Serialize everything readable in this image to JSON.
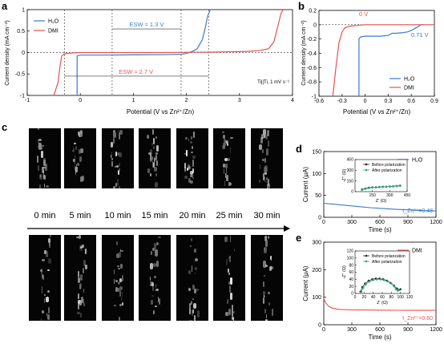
{
  "panel_letters": [
    "a",
    "b",
    "c",
    "d",
    "e"
  ],
  "panel_c": {
    "times": [
      "0 min",
      "5 min",
      "10 min",
      "15 min",
      "20 min",
      "25 min",
      "30 min"
    ]
  },
  "chart_data": [
    {
      "id": "a",
      "type": "line",
      "xlabel": "Potential (V vs Zn²⁺/Zn)",
      "ylabel": "Current density (mA cm⁻²)",
      "xlim": [
        -1,
        4
      ],
      "ylim": [
        -1,
        1
      ],
      "xticks": [
        -1,
        0,
        1,
        2,
        3,
        4
      ],
      "yticks": [
        -1,
        -0.5,
        0,
        0.5,
        1
      ],
      "legend": [
        "H₂O",
        "DMI"
      ],
      "legend_position": "top-left",
      "annotations": {
        "esw_h2o": "ESW ≈ 1.3 V",
        "esw_dmi": "ESW ≈ 2.7 V",
        "condition": "Ti||Ti, 1 mV s⁻¹"
      },
      "series": [
        {
          "name": "H₂O",
          "color": "#3a7cc8",
          "x": [
            -0.06,
            -0.06,
            0.0,
            0.5,
            1.0,
            1.5,
            1.9,
            2.0,
            2.1,
            2.2,
            2.3,
            2.36,
            2.4,
            2.45
          ],
          "y": [
            -1.0,
            -0.08,
            -0.06,
            -0.06,
            -0.055,
            -0.05,
            -0.04,
            -0.02,
            0.02,
            0.08,
            0.3,
            0.6,
            0.85,
            1.0
          ]
        },
        {
          "name": "DMI",
          "color": "#e4534f",
          "x": [
            -0.5,
            -0.42,
            -0.38,
            -0.35,
            -0.3,
            -0.25,
            -0.15,
            0.0,
            0.5,
            1.0,
            1.5,
            2.0,
            2.5,
            3.0,
            3.2,
            3.4,
            3.55,
            3.65,
            3.72,
            3.78,
            3.82
          ],
          "y": [
            -1.0,
            -0.7,
            -0.3,
            -0.08,
            -0.03,
            -0.02,
            -0.01,
            0.0,
            0.0,
            0.0,
            0.0,
            0.005,
            0.01,
            0.02,
            0.03,
            0.05,
            0.09,
            0.25,
            0.6,
            0.9,
            1.0
          ]
        }
      ]
    },
    {
      "id": "b",
      "type": "line",
      "xlabel": "Potential (V vs Zn²⁺/Zn)",
      "ylabel": "Current density (mA cm⁻²)",
      "xlim": [
        -0.6,
        0.9
      ],
      "ylim": [
        -1,
        0.2
      ],
      "xticks": [
        -0.6,
        -0.3,
        0.0,
        0.3,
        0.6,
        0.9
      ],
      "yticks": [
        -1.0,
        -0.8,
        -0.6,
        -0.4,
        -0.2,
        0.0,
        0.2
      ],
      "legend": [
        "H₂O",
        "DMI"
      ],
      "legend_position": "bottom-right",
      "annotations": {
        "dmi_onset": "0 V",
        "h2o_onset": "0.71 V"
      },
      "series": [
        {
          "name": "H₂O",
          "color": "#3a7cc8",
          "x": [
            -0.08,
            -0.08,
            -0.06,
            0.0,
            0.1,
            0.2,
            0.3,
            0.35,
            0.4,
            0.45,
            0.5,
            0.55,
            0.6,
            0.65,
            0.7,
            0.72,
            0.76
          ],
          "y": [
            -1.0,
            -0.2,
            -0.17,
            -0.16,
            -0.16,
            -0.16,
            -0.15,
            -0.12,
            -0.12,
            -0.115,
            -0.11,
            -0.1,
            -0.08,
            -0.05,
            -0.02,
            0.0,
            0.0
          ]
        },
        {
          "name": "DMI",
          "color": "#e4534f",
          "x": [
            -0.42,
            -0.38,
            -0.34,
            -0.3,
            -0.26,
            -0.2,
            -0.1,
            0.0,
            0.1,
            0.3,
            0.6,
            0.9
          ],
          "y": [
            -1.0,
            -0.6,
            -0.25,
            -0.1,
            -0.04,
            -0.02,
            -0.01,
            0.0,
            0.0,
            0.0,
            0.0,
            0.0
          ]
        }
      ]
    },
    {
      "id": "d",
      "type": "line",
      "xlabel": "Time (s)",
      "ylabel": "Current (μA)",
      "xlim": [
        0,
        1200
      ],
      "ylim": [
        0,
        150
      ],
      "xticks": [
        0,
        300,
        600,
        900,
        1200
      ],
      "yticks": [
        0,
        50,
        100,
        150
      ],
      "legend": [
        "H₂O"
      ],
      "annotation": "t_Zn²⁺=0.48",
      "series": [
        {
          "name": "H₂O",
          "color": "#3a7cc8",
          "x": [
            0,
            100,
            200,
            300,
            400,
            500,
            600,
            700,
            800,
            900,
            1000,
            1100,
            1200
          ],
          "y": [
            32,
            30,
            28,
            26,
            24,
            22,
            20.5,
            19,
            18,
            17,
            16,
            15,
            14.5
          ]
        }
      ],
      "inset": {
        "xlabel": "Z' (Ω)",
        "ylabel": "-Z'' (Ω)",
        "xlim": [
          0,
          450
        ],
        "ylim": [
          0,
          450
        ],
        "xticks": [
          150,
          300,
          450
        ],
        "yticks": [
          0,
          150,
          300,
          450
        ],
        "legend": [
          "Before polarization",
          "After polarization"
        ],
        "series": [
          {
            "name": "Before polarization",
            "color": "#222222",
            "x": [
              60,
              90,
              120,
              150,
              180,
              210,
              240,
              270,
              300,
              330,
              360,
              390
            ],
            "y": [
              30,
              45,
              55,
              60,
              62,
              65,
              68,
              70,
              72,
              75,
              80,
              85
            ]
          },
          {
            "name": "After polarization",
            "color": "#2aa87a",
            "x": [
              60,
              90,
              120,
              150,
              180,
              210,
              240,
              270,
              300,
              330,
              360,
              390
            ],
            "y": [
              25,
              40,
              50,
              56,
              60,
              63,
              66,
              69,
              71,
              74,
              78,
              82
            ]
          }
        ]
      }
    },
    {
      "id": "e",
      "type": "line",
      "xlabel": "Time (s)",
      "ylabel": "Current (μA)",
      "xlim": [
        0,
        1200
      ],
      "ylim": [
        0,
        300
      ],
      "xticks": [
        0,
        300,
        600,
        900,
        1200
      ],
      "yticks": [
        0,
        100,
        200,
        300
      ],
      "legend": [
        "DMI"
      ],
      "annotation": "t_Zn²⁺=0.60",
      "series": [
        {
          "name": "DMI",
          "color": "#e4534f",
          "x": [
            0,
            20,
            50,
            80,
            120,
            160,
            200,
            300,
            400,
            600,
            800,
            1000,
            1200
          ],
          "y": [
            95,
            80,
            68,
            62,
            58,
            56,
            55,
            54,
            53.5,
            53,
            52.5,
            52,
            52
          ]
        }
      ],
      "inset": {
        "xlabel": "Z' (Ω)",
        "ylabel": "-Z'' (Ω)",
        "xlim": [
          0,
          120
        ],
        "ylim": [
          0,
          120
        ],
        "xticks": [
          0,
          20,
          40,
          60,
          80,
          100,
          120
        ],
        "yticks": [
          0,
          20,
          40,
          60,
          80,
          100,
          120
        ],
        "legend": [
          "Before polarization",
          "After polarization"
        ],
        "series": [
          {
            "name": "Before polarization",
            "color": "#222222",
            "x": [
              12,
              16,
              22,
              30,
              38,
              46,
              54,
              62,
              70,
              78,
              86,
              92,
              96,
              100
            ],
            "y": [
              5,
              18,
              28,
              36,
              40,
              42,
              42,
              40,
              36,
              30,
              22,
              14,
              10,
              12
            ]
          },
          {
            "name": "After polarization",
            "color": "#2aa87a",
            "x": [
              14,
              18,
              24,
              32,
              40,
              48,
              56,
              64,
              72,
              80,
              86,
              90,
              94,
              98
            ],
            "y": [
              5,
              16,
              26,
              34,
              38,
              40,
              40,
              38,
              34,
              28,
              20,
              12,
              8,
              10
            ]
          }
        ]
      }
    }
  ]
}
